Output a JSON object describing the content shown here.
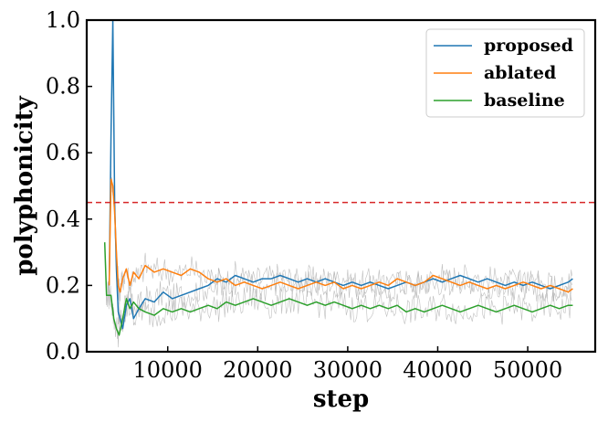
{
  "chart_data": {
    "type": "line",
    "title": "",
    "xlabel": "step",
    "ylabel": "polyphonicity",
    "xlim": [
      1000,
      57500
    ],
    "ylim": [
      0.0,
      1.0
    ],
    "xticks": [
      10000,
      20000,
      30000,
      40000,
      50000
    ],
    "yticks": [
      0.0,
      0.2,
      0.4,
      0.6,
      0.8,
      1.0
    ],
    "xtick_labels": [
      "10000",
      "20000",
      "30000",
      "40000",
      "50000"
    ],
    "ytick_labels": [
      "0.0",
      "0.2",
      "0.4",
      "0.6",
      "0.8",
      "1.0"
    ],
    "grid": false,
    "legend_position": "top-right",
    "reference_line": {
      "y": 0.45,
      "color": "#d62728",
      "style": "dashed"
    },
    "raw_noise_color": "#aaaaaa",
    "series": [
      {
        "name": "proposed",
        "color": "#1f77b4",
        "x": [
          3500,
          3700,
          3900,
          4100,
          4300,
          4500,
          4700,
          5000,
          5400,
          5800,
          6200,
          6800,
          7500,
          8500,
          9500,
          10500,
          11500,
          12500,
          13500,
          14500,
          15500,
          16500,
          17500,
          18500,
          19500,
          20500,
          21500,
          22500,
          23500,
          24500,
          25500,
          26500,
          27500,
          28500,
          29500,
          30500,
          31500,
          32500,
          33500,
          34500,
          35500,
          36500,
          37500,
          38500,
          39500,
          40500,
          41500,
          42500,
          43500,
          44500,
          45500,
          46500,
          47500,
          48500,
          49500,
          50500,
          51500,
          52500,
          53500,
          54500,
          55000
        ],
        "y": [
          0.2,
          0.65,
          1.0,
          0.45,
          0.25,
          0.12,
          0.1,
          0.07,
          0.14,
          0.16,
          0.1,
          0.13,
          0.16,
          0.15,
          0.18,
          0.16,
          0.17,
          0.18,
          0.19,
          0.2,
          0.22,
          0.21,
          0.23,
          0.22,
          0.21,
          0.22,
          0.22,
          0.23,
          0.22,
          0.21,
          0.22,
          0.21,
          0.22,
          0.21,
          0.2,
          0.21,
          0.2,
          0.21,
          0.2,
          0.19,
          0.2,
          0.21,
          0.2,
          0.21,
          0.22,
          0.21,
          0.22,
          0.23,
          0.22,
          0.21,
          0.22,
          0.21,
          0.2,
          0.21,
          0.2,
          0.21,
          0.2,
          0.19,
          0.2,
          0.21,
          0.22
        ]
      },
      {
        "name": "ablated",
        "color": "#ff7f0e",
        "x": [
          3500,
          3700,
          3900,
          4100,
          4300,
          4500,
          4700,
          5000,
          5400,
          5800,
          6200,
          6800,
          7500,
          8500,
          9500,
          10500,
          11500,
          12500,
          13500,
          14500,
          15500,
          16500,
          17500,
          18500,
          19500,
          20500,
          21500,
          22500,
          23500,
          24500,
          25500,
          26500,
          27500,
          28500,
          29500,
          30500,
          31500,
          32500,
          33500,
          34500,
          35500,
          36500,
          37500,
          38500,
          39500,
          40500,
          41500,
          42500,
          43500,
          44500,
          45500,
          46500,
          47500,
          48500,
          49500,
          50500,
          51500,
          52500,
          53500,
          54500,
          55000
        ],
        "y": [
          0.2,
          0.52,
          0.5,
          0.42,
          0.3,
          0.2,
          0.18,
          0.22,
          0.25,
          0.2,
          0.24,
          0.22,
          0.26,
          0.24,
          0.25,
          0.24,
          0.23,
          0.25,
          0.24,
          0.22,
          0.21,
          0.22,
          0.2,
          0.21,
          0.2,
          0.19,
          0.2,
          0.21,
          0.2,
          0.19,
          0.2,
          0.21,
          0.2,
          0.21,
          0.19,
          0.2,
          0.19,
          0.2,
          0.21,
          0.2,
          0.22,
          0.21,
          0.2,
          0.21,
          0.23,
          0.22,
          0.21,
          0.2,
          0.21,
          0.2,
          0.19,
          0.2,
          0.19,
          0.2,
          0.21,
          0.2,
          0.19,
          0.2,
          0.19,
          0.18,
          0.19
        ]
      },
      {
        "name": "baseline",
        "color": "#2ca02c",
        "x": [
          3000,
          3200,
          3400,
          3700,
          4000,
          4300,
          4600,
          5000,
          5400,
          5800,
          6200,
          6800,
          7500,
          8500,
          9500,
          10500,
          11500,
          12500,
          13500,
          14500,
          15500,
          16500,
          17500,
          18500,
          19500,
          20500,
          21500,
          22500,
          23500,
          24500,
          25500,
          26500,
          27500,
          28500,
          29500,
          30500,
          31500,
          32500,
          33500,
          34500,
          35500,
          36500,
          37500,
          38500,
          39500,
          40500,
          41500,
          42500,
          43500,
          44500,
          45500,
          46500,
          47500,
          48500,
          49500,
          50500,
          51500,
          52500,
          53500,
          54500,
          55000
        ],
        "y": [
          0.33,
          0.17,
          0.17,
          0.17,
          0.1,
          0.07,
          0.05,
          0.1,
          0.16,
          0.13,
          0.15,
          0.13,
          0.12,
          0.11,
          0.13,
          0.12,
          0.13,
          0.12,
          0.13,
          0.14,
          0.13,
          0.15,
          0.14,
          0.15,
          0.16,
          0.15,
          0.14,
          0.15,
          0.16,
          0.15,
          0.14,
          0.15,
          0.14,
          0.15,
          0.14,
          0.13,
          0.14,
          0.13,
          0.14,
          0.13,
          0.14,
          0.12,
          0.13,
          0.12,
          0.13,
          0.14,
          0.13,
          0.12,
          0.13,
          0.14,
          0.13,
          0.12,
          0.13,
          0.14,
          0.13,
          0.12,
          0.13,
          0.14,
          0.13,
          0.14,
          0.14
        ]
      }
    ]
  }
}
